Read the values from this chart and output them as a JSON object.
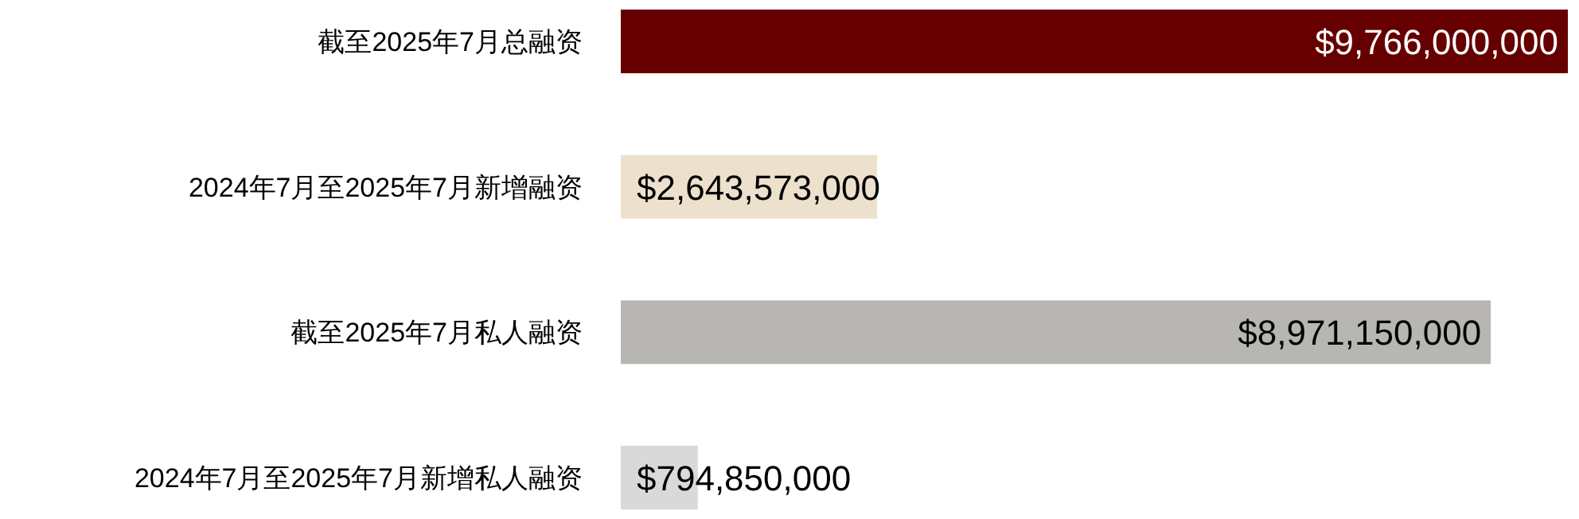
{
  "chart_data": {
    "type": "bar",
    "orientation": "horizontal",
    "categories": [
      "截至2025年7月总融资",
      "2024年7月至2025年7月新增融资",
      "截至2025年7月私人融资",
      "2024年7月至2025年7月新增私人融资"
    ],
    "values": [
      9766000000,
      2643573000,
      8971150000,
      794850000
    ],
    "value_labels": [
      "$9,766,000,000",
      "$2,643,573,000",
      "$8,971,150,000",
      "$794,850,000"
    ],
    "colors": [
      "#660000",
      "#ede0cc",
      "#b8b6b2",
      "#d9d9d9"
    ],
    "xlim": [
      0,
      9766000000
    ],
    "tick_labels": "y"
  }
}
